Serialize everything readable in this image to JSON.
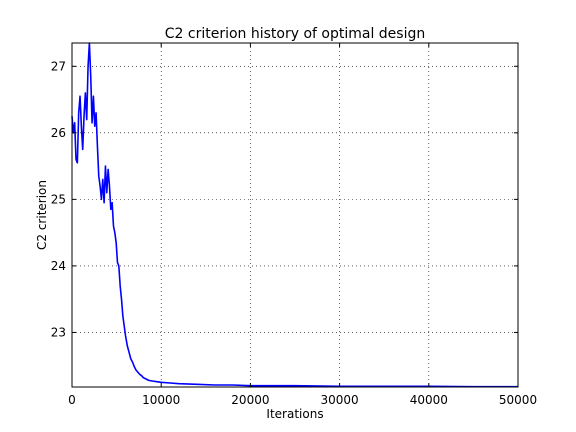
{
  "chart_data": {
    "type": "line",
    "title": "C2 criterion history of optimal design",
    "xlabel": "Iterations",
    "ylabel": "C2 criterion",
    "xlim": [
      0,
      50000
    ],
    "ylim": [
      22.18,
      27.35
    ],
    "xticks": [
      0,
      10000,
      20000,
      30000,
      40000,
      50000
    ],
    "xtick_labels": [
      "0",
      "10000",
      "20000",
      "30000",
      "40000",
      "50000"
    ],
    "yticks": [
      23,
      24,
      25,
      26,
      27
    ],
    "ytick_labels": [
      "23",
      "24",
      "25",
      "26",
      "27"
    ],
    "grid": true,
    "line_color": "#0000ff",
    "series": [
      {
        "x": [
          0,
          150,
          300,
          450,
          600,
          750,
          900,
          1050,
          1200,
          1350,
          1500,
          1650,
          1800,
          1950,
          2100,
          2250,
          2400,
          2550,
          2700,
          2850,
          3000,
          3150,
          3300,
          3450,
          3600,
          3750,
          3900,
          4050,
          4200,
          4350,
          4500,
          4650,
          4800,
          4950,
          5100,
          5250,
          5400,
          5550,
          5700,
          5850,
          6000,
          6200,
          6400,
          6600,
          6800,
          7000,
          7200,
          7400,
          7600,
          7800,
          8000,
          8300,
          8600,
          9000,
          9500,
          10000,
          11000,
          12000,
          14000,
          16000,
          18000,
          20000,
          25000,
          30000,
          35000,
          40000,
          45000,
          50000
        ],
        "y": [
          26.25,
          26.0,
          26.15,
          25.6,
          25.55,
          26.3,
          26.55,
          26.1,
          25.75,
          26.25,
          26.6,
          26.2,
          27.0,
          27.35,
          26.85,
          26.15,
          26.55,
          26.1,
          26.3,
          25.8,
          25.35,
          25.2,
          25.0,
          25.3,
          24.95,
          25.5,
          25.1,
          25.45,
          25.2,
          24.85,
          24.95,
          24.6,
          24.5,
          24.35,
          24.05,
          24.0,
          23.7,
          23.5,
          23.25,
          23.1,
          22.95,
          22.8,
          22.7,
          22.6,
          22.55,
          22.48,
          22.43,
          22.4,
          22.37,
          22.35,
          22.32,
          22.3,
          22.28,
          22.27,
          22.26,
          22.25,
          22.24,
          22.23,
          22.22,
          22.21,
          22.21,
          22.2,
          22.2,
          22.19,
          22.19,
          22.19,
          22.185,
          22.185
        ]
      }
    ]
  }
}
